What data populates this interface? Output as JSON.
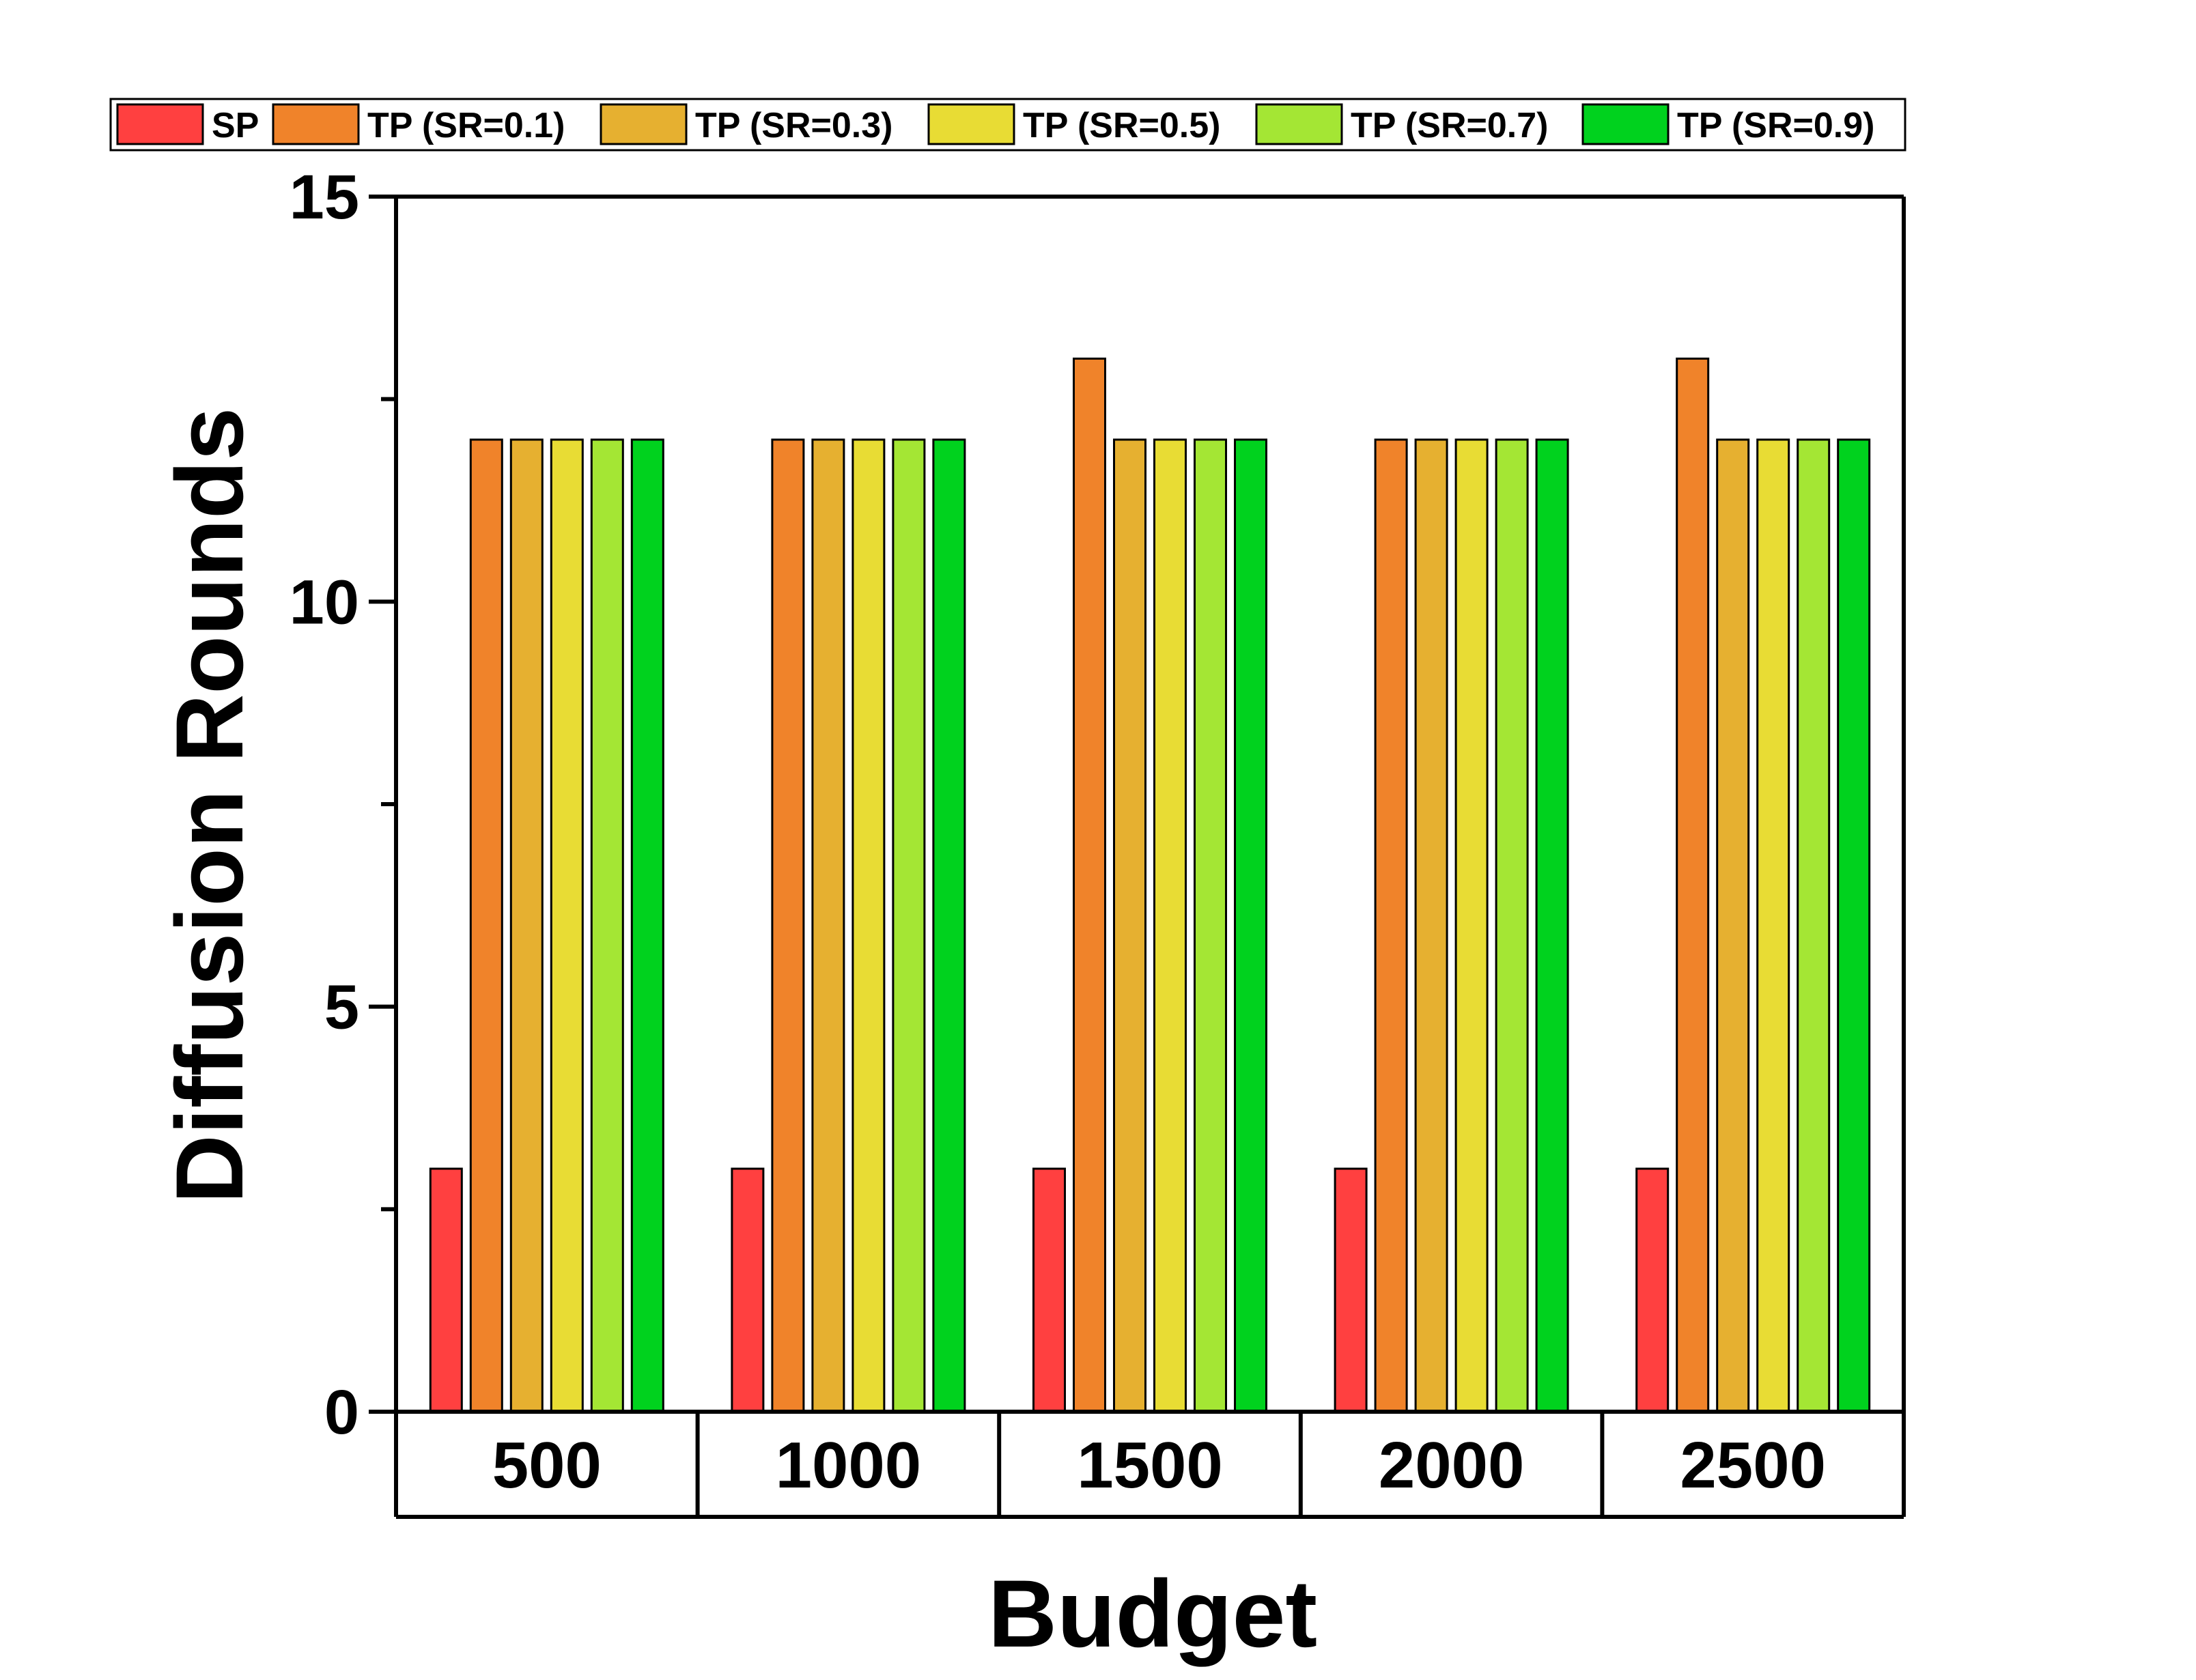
{
  "chart_data": {
    "type": "bar",
    "title": "",
    "xlabel": "Budget",
    "ylabel": "Diffusion Rounds",
    "categories": [
      "500",
      "1000",
      "1500",
      "2000",
      "2500"
    ],
    "ylim": [
      0,
      15
    ],
    "yticks": [
      0,
      5,
      10,
      15
    ],
    "grid": false,
    "legend": "top",
    "series": [
      {
        "name": "SP",
        "color": "#ff4040",
        "values": [
          3,
          3,
          3,
          3,
          3
        ]
      },
      {
        "name": "TP (SR=0.1)",
        "color": "#f0832a",
        "values": [
          12,
          12,
          13,
          12,
          13
        ]
      },
      {
        "name": "TP (SR=0.3)",
        "color": "#e6b030",
        "values": [
          12,
          12,
          12,
          12,
          12
        ]
      },
      {
        "name": "TP (SR=0.5)",
        "color": "#e8dc34",
        "values": [
          12,
          12,
          12,
          12,
          12
        ]
      },
      {
        "name": "TP (SR=0.7)",
        "color": "#a4e634",
        "values": [
          12,
          12,
          12,
          12,
          12
        ]
      },
      {
        "name": "TP (SR=0.9)",
        "color": "#00d21e",
        "values": [
          12,
          12,
          12,
          12,
          12
        ]
      }
    ]
  }
}
